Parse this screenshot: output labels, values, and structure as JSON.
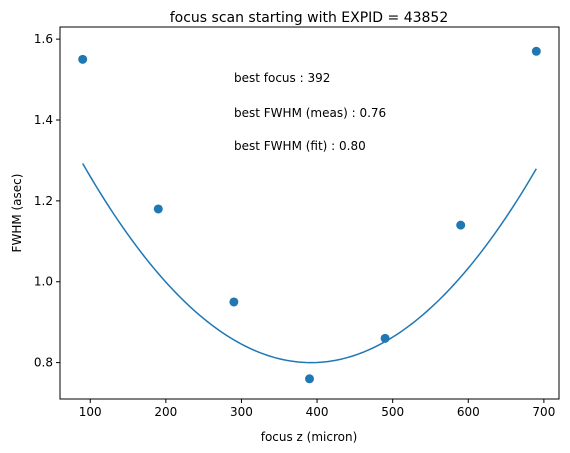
{
  "chart_data": {
    "type": "scatter",
    "title": "focus scan starting with EXPID = 43852",
    "xlabel": "focus z (micron)",
    "ylabel": "FWHM (asec)",
    "xlim": [
      60,
      720
    ],
    "ylim": [
      0.71,
      1.63
    ],
    "xticks": [
      100,
      200,
      300,
      400,
      500,
      600,
      700
    ],
    "yticks": [
      0.8,
      1.0,
      1.2,
      1.4,
      1.6
    ],
    "xtick_labels": [
      "100",
      "200",
      "300",
      "400",
      "500",
      "600",
      "700"
    ],
    "ytick_labels": [
      "0.8",
      "1.0",
      "1.2",
      "1.4",
      "1.6"
    ],
    "grid": false,
    "color": "#1f77b4",
    "series": [
      {
        "kind": "points",
        "x": [
          90,
          190,
          290,
          390,
          490,
          590,
          690
        ],
        "y": [
          1.55,
          1.18,
          0.95,
          0.76,
          0.86,
          1.14,
          1.57
        ]
      },
      {
        "kind": "fit-curve",
        "x": [
          90,
          690
        ],
        "vertex_x": 392,
        "vertex_y": 0.8,
        "curvature": 5.4e-06
      }
    ],
    "annotations": [
      "best focus : 392",
      "best FWHM (meas) : 0.76",
      "best FWHM (fit) : 0.80"
    ]
  }
}
